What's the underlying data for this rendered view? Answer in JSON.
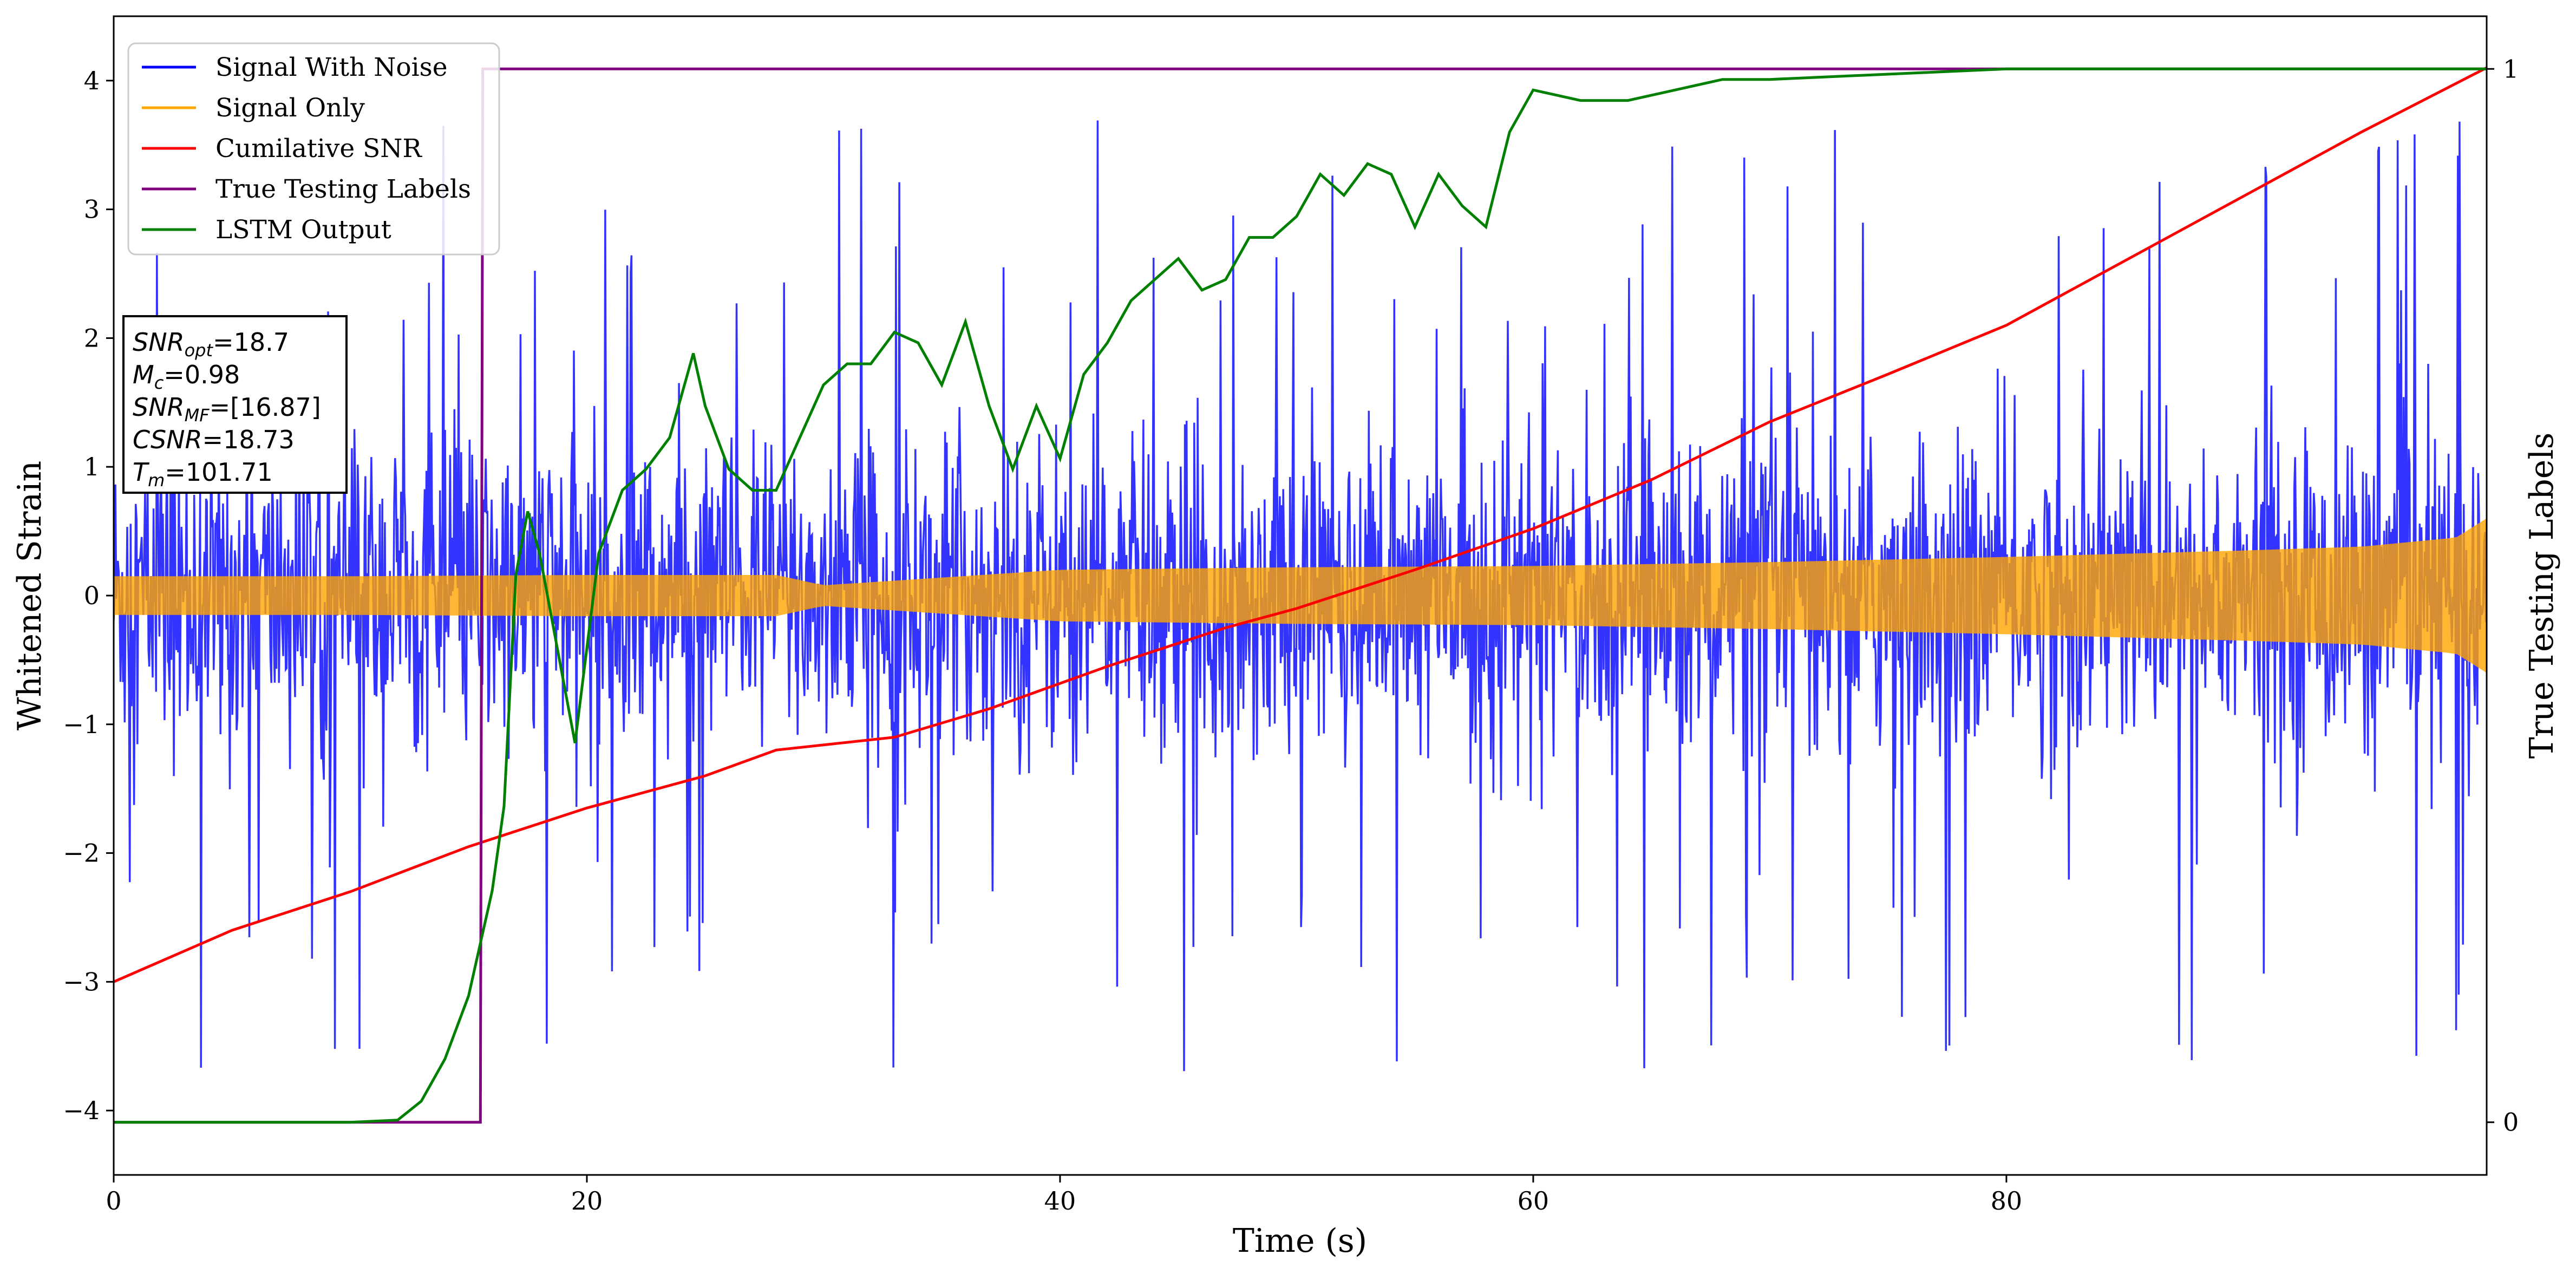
{
  "chart_data": {
    "type": "line",
    "xlabel": "Time (s)",
    "ylabel": "Whitened Strain",
    "ylabel_right": "True Testing Labels",
    "xlim": [
      0,
      100.3
    ],
    "ylim": [
      -4.5,
      4.5
    ],
    "ylim_right": [
      -0.05,
      1.05
    ],
    "x_ticks": [
      0,
      20,
      40,
      60,
      80
    ],
    "y_ticks": [
      -4,
      -3,
      -2,
      -1,
      0,
      1,
      2,
      3,
      4
    ],
    "y_right_ticks": [
      0,
      1
    ],
    "grid": false,
    "legend_position": "upper-left",
    "legend": [
      {
        "label": "Signal With Noise",
        "color": "#0000ff"
      },
      {
        "label": "Signal Only",
        "color": "#ffa500"
      },
      {
        "label": "Cumilative SNR",
        "color": "#ff0000"
      },
      {
        "label": "True Testing Labels",
        "color": "#800080"
      },
      {
        "label": "LSTM Output",
        "color": "#008000"
      }
    ],
    "annotation": {
      "lines": [
        {
          "base": "SNR",
          "sub": "opt",
          "value": "=18.7"
        },
        {
          "base": "M",
          "sub": "c",
          "value": "=0.98"
        },
        {
          "base": "SNR",
          "sub": "MF",
          "value": "=[16.87]"
        },
        {
          "base": "CSNR",
          "sub": "",
          "value": "=18.73"
        },
        {
          "base": "T",
          "sub": "m",
          "value": "=101.71"
        }
      ]
    },
    "series": [
      {
        "name": "Signal With Noise",
        "axis": "left",
        "color": "#0000ff",
        "description": "dense noisy strain, amplitude roughly ±1 typical with spikes up to ±4",
        "envelope": {
          "typical": 1.0,
          "max_spike": 4.1,
          "min_spike": -4.0
        }
      },
      {
        "name": "Signal Only",
        "axis": "left",
        "color": "#ffa500",
        "envelope_x": [
          0,
          10,
          20,
          28,
          30,
          40,
          50,
          60,
          70,
          80,
          90,
          95,
          99,
          100.3
        ],
        "envelope_amp": [
          0.15,
          0.15,
          0.16,
          0.16,
          0.08,
          0.2,
          0.22,
          0.23,
          0.26,
          0.3,
          0.35,
          0.38,
          0.45,
          0.6
        ]
      },
      {
        "name": "Cumilative SNR",
        "axis": "left",
        "color": "#ff0000",
        "x": [
          0,
          5,
          10,
          15,
          20,
          25,
          28,
          33,
          37,
          42,
          47,
          50,
          55,
          60,
          65,
          70,
          75,
          80,
          85,
          90,
          95,
          100.3
        ],
        "y": [
          -3.0,
          -2.6,
          -2.3,
          -1.95,
          -1.65,
          -1.4,
          -1.2,
          -1.1,
          -0.88,
          -0.55,
          -0.25,
          -0.1,
          0.2,
          0.52,
          0.9,
          1.35,
          1.72,
          2.1,
          2.6,
          3.1,
          3.6,
          4.1
        ]
      },
      {
        "name": "True Testing Labels",
        "axis": "right",
        "color": "#800080",
        "x": [
          0,
          15.5,
          15.6,
          100.3
        ],
        "y": [
          0,
          0,
          1,
          1
        ]
      },
      {
        "name": "LSTM Output",
        "axis": "right",
        "color": "#008000",
        "x": [
          0,
          10,
          12,
          13,
          14,
          15,
          16,
          16.5,
          17,
          17.5,
          18,
          19.5,
          20.5,
          21.5,
          22.5,
          23.5,
          24.5,
          25,
          26,
          27,
          28,
          29,
          30,
          31,
          32,
          33,
          34,
          35,
          36,
          37,
          38,
          39,
          40,
          41,
          42,
          43,
          44,
          45,
          46,
          47,
          48,
          49,
          50,
          51,
          52,
          53,
          54,
          55,
          56,
          57,
          58,
          59,
          60,
          62,
          64,
          66,
          68,
          70,
          75,
          80,
          85,
          90,
          95,
          100.3
        ],
        "y": [
          0,
          0,
          0.002,
          0.02,
          0.06,
          0.12,
          0.22,
          0.3,
          0.52,
          0.58,
          0.54,
          0.36,
          0.54,
          0.6,
          0.62,
          0.65,
          0.73,
          0.68,
          0.62,
          0.6,
          0.6,
          0.65,
          0.7,
          0.72,
          0.72,
          0.75,
          0.74,
          0.7,
          0.76,
          0.68,
          0.62,
          0.68,
          0.63,
          0.71,
          0.74,
          0.78,
          0.8,
          0.82,
          0.79,
          0.8,
          0.84,
          0.84,
          0.86,
          0.9,
          0.88,
          0.91,
          0.9,
          0.85,
          0.9,
          0.87,
          0.85,
          0.94,
          0.98,
          0.97,
          0.97,
          0.98,
          0.99,
          0.99,
          0.995,
          1.0,
          1.0,
          1.0,
          1.0,
          1.0
        ]
      }
    ]
  }
}
